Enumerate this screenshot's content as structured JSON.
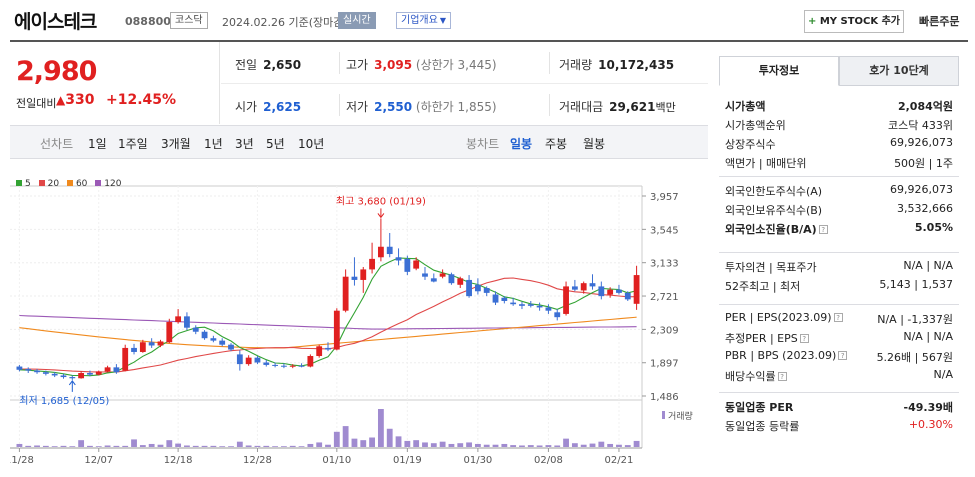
{
  "header": {
    "company": "에이스테크",
    "code": "088800",
    "market": "코스닥",
    "date_label": "2024.02.26 기준(장마감)",
    "live_label": "실시간",
    "info_label": "기업개요",
    "mystock_label": "MY STOCK 추가",
    "quick_order_label": "빠른주문"
  },
  "price": {
    "current": "2,980",
    "prev_diff_label": "전일대비",
    "change": "330",
    "change_rate": "+12.45%"
  },
  "stats": {
    "prev_close": {
      "label": "전일",
      "value": "2,650"
    },
    "high": {
      "label": "고가",
      "value": "3,095",
      "sub": "(상한가 3,445)"
    },
    "volume": {
      "label": "거래량",
      "value": "10,172,435"
    },
    "open": {
      "label": "시가",
      "value": "2,625"
    },
    "low": {
      "label": "저가",
      "value": "2,550",
      "sub": "(하한가 1,855)"
    },
    "amount": {
      "label": "거래대금",
      "value": "29,621",
      "unit": "백만"
    }
  },
  "period_bar": {
    "line_chart_label": "선차트",
    "line_periods": [
      "1일",
      "1주일",
      "3개월",
      "1년",
      "3년",
      "5년",
      "10년"
    ],
    "candle_chart_label": "봉차트",
    "candle_periods": [
      "일봉",
      "주봉",
      "월봉"
    ],
    "selected": "일봉"
  },
  "chart_data": {
    "type": "candlestick",
    "legend": [
      "5",
      "20",
      "60",
      "120"
    ],
    "colors": {
      "ma5": "#33a333",
      "ma20": "#e04848",
      "ma60": "#f08a1e",
      "ma120": "#9b59b6",
      "up": "#e02020",
      "down": "#3b6fd4",
      "volume": "#a08bd0"
    },
    "y_ticks": [
      "3,957",
      "3,545",
      "3,133",
      "2,721",
      "2,309",
      "1,897",
      "1,486"
    ],
    "y_range": [
      1486,
      3957
    ],
    "x_ticks": [
      "11/28",
      "12/07",
      "12/18",
      "12/28",
      "01/10",
      "01/19",
      "01/30",
      "02/08",
      "02/21"
    ],
    "max_annotation": "최고 3,680 (01/19)",
    "min_annotation": "최저 1,685 (12/05)",
    "volume_label": "거래량",
    "candles": [
      {
        "o": 1850,
        "h": 1870,
        "l": 1790,
        "c": 1810
      },
      {
        "o": 1820,
        "h": 1840,
        "l": 1770,
        "c": 1800
      },
      {
        "o": 1800,
        "h": 1820,
        "l": 1760,
        "c": 1780
      },
      {
        "o": 1780,
        "h": 1800,
        "l": 1740,
        "c": 1760
      },
      {
        "o": 1760,
        "h": 1780,
        "l": 1720,
        "c": 1740
      },
      {
        "o": 1740,
        "h": 1760,
        "l": 1700,
        "c": 1720
      },
      {
        "o": 1720,
        "h": 1740,
        "l": 1685,
        "c": 1705
      },
      {
        "o": 1705,
        "h": 1790,
        "l": 1700,
        "c": 1770
      },
      {
        "o": 1770,
        "h": 1800,
        "l": 1730,
        "c": 1750
      },
      {
        "o": 1750,
        "h": 1800,
        "l": 1740,
        "c": 1790
      },
      {
        "o": 1790,
        "h": 1860,
        "l": 1780,
        "c": 1840
      },
      {
        "o": 1840,
        "h": 1880,
        "l": 1760,
        "c": 1780
      },
      {
        "o": 1800,
        "h": 2120,
        "l": 1790,
        "c": 2080
      },
      {
        "o": 2080,
        "h": 2130,
        "l": 2000,
        "c": 2030
      },
      {
        "o": 2030,
        "h": 2180,
        "l": 2020,
        "c": 2150
      },
      {
        "o": 2150,
        "h": 2200,
        "l": 2080,
        "c": 2110
      },
      {
        "o": 2110,
        "h": 2180,
        "l": 2090,
        "c": 2160
      },
      {
        "o": 2150,
        "h": 2440,
        "l": 2140,
        "c": 2400
      },
      {
        "o": 2400,
        "h": 2560,
        "l": 2380,
        "c": 2470
      },
      {
        "o": 2470,
        "h": 2520,
        "l": 2300,
        "c": 2330
      },
      {
        "o": 2330,
        "h": 2360,
        "l": 2250,
        "c": 2280
      },
      {
        "o": 2280,
        "h": 2300,
        "l": 2180,
        "c": 2200
      },
      {
        "o": 2200,
        "h": 2230,
        "l": 2150,
        "c": 2170
      },
      {
        "o": 2170,
        "h": 2200,
        "l": 2100,
        "c": 2120
      },
      {
        "o": 2120,
        "h": 2140,
        "l": 2040,
        "c": 2060
      },
      {
        "o": 2000,
        "h": 2050,
        "l": 1800,
        "c": 1880
      },
      {
        "o": 1880,
        "h": 1990,
        "l": 1860,
        "c": 1960
      },
      {
        "o": 1960,
        "h": 1980,
        "l": 1880,
        "c": 1900
      },
      {
        "o": 1900,
        "h": 1930,
        "l": 1850,
        "c": 1870
      },
      {
        "o": 1870,
        "h": 1900,
        "l": 1840,
        "c": 1860
      },
      {
        "o": 1860,
        "h": 1890,
        "l": 1830,
        "c": 1850
      },
      {
        "o": 1850,
        "h": 1880,
        "l": 1830,
        "c": 1860
      },
      {
        "o": 1860,
        "h": 1890,
        "l": 1840,
        "c": 1850
      },
      {
        "o": 1850,
        "h": 2000,
        "l": 1840,
        "c": 1980
      },
      {
        "o": 1980,
        "h": 2120,
        "l": 1960,
        "c": 2100
      },
      {
        "o": 2080,
        "h": 2150,
        "l": 2040,
        "c": 2060
      },
      {
        "o": 2060,
        "h": 2570,
        "l": 2050,
        "c": 2540
      },
      {
        "o": 2540,
        "h": 3050,
        "l": 2520,
        "c": 2960
      },
      {
        "o": 2960,
        "h": 3200,
        "l": 2850,
        "c": 2920
      },
      {
        "o": 2920,
        "h": 3080,
        "l": 2760,
        "c": 3050
      },
      {
        "o": 3050,
        "h": 3380,
        "l": 3000,
        "c": 3180
      },
      {
        "o": 3200,
        "h": 3680,
        "l": 3150,
        "c": 3330
      },
      {
        "o": 3330,
        "h": 3500,
        "l": 3200,
        "c": 3240
      },
      {
        "o": 3200,
        "h": 3310,
        "l": 3100,
        "c": 3160
      },
      {
        "o": 3180,
        "h": 3220,
        "l": 2980,
        "c": 3020
      },
      {
        "o": 3060,
        "h": 3200,
        "l": 3040,
        "c": 3160
      },
      {
        "o": 3000,
        "h": 3080,
        "l": 2920,
        "c": 2960
      },
      {
        "o": 2940,
        "h": 3000,
        "l": 2890,
        "c": 2900
      },
      {
        "o": 2960,
        "h": 3050,
        "l": 2940,
        "c": 3000
      },
      {
        "o": 2990,
        "h": 3010,
        "l": 2860,
        "c": 2880
      },
      {
        "o": 2860,
        "h": 2960,
        "l": 2820,
        "c": 2940
      },
      {
        "o": 2920,
        "h": 2980,
        "l": 2700,
        "c": 2720
      },
      {
        "o": 2860,
        "h": 2940,
        "l": 2740,
        "c": 2780
      },
      {
        "o": 2820,
        "h": 2840,
        "l": 2720,
        "c": 2760
      },
      {
        "o": 2740,
        "h": 2780,
        "l": 2610,
        "c": 2640
      },
      {
        "o": 2700,
        "h": 2720,
        "l": 2630,
        "c": 2660
      },
      {
        "o": 2640,
        "h": 2700,
        "l": 2600,
        "c": 2620
      },
      {
        "o": 2620,
        "h": 2650,
        "l": 2560,
        "c": 2600
      },
      {
        "o": 2620,
        "h": 2660,
        "l": 2580,
        "c": 2600
      },
      {
        "o": 2600,
        "h": 2640,
        "l": 2540,
        "c": 2580
      },
      {
        "o": 2580,
        "h": 2620,
        "l": 2500,
        "c": 2540
      },
      {
        "o": 2520,
        "h": 2560,
        "l": 2420,
        "c": 2460
      },
      {
        "o": 2500,
        "h": 2900,
        "l": 2480,
        "c": 2840
      },
      {
        "o": 2840,
        "h": 2920,
        "l": 2780,
        "c": 2800
      },
      {
        "o": 2790,
        "h": 2900,
        "l": 2750,
        "c": 2880
      },
      {
        "o": 2880,
        "h": 2990,
        "l": 2800,
        "c": 2840
      },
      {
        "o": 2840,
        "h": 2900,
        "l": 2680,
        "c": 2720
      },
      {
        "o": 2740,
        "h": 2830,
        "l": 2700,
        "c": 2800
      },
      {
        "o": 2800,
        "h": 2860,
        "l": 2740,
        "c": 2760
      },
      {
        "o": 2760,
        "h": 2780,
        "l": 2660,
        "c": 2680
      },
      {
        "o": 2625,
        "h": 3095,
        "l": 2550,
        "c": 2980
      }
    ],
    "volumes": [
      8,
      3,
      4,
      3,
      2,
      3,
      2,
      18,
      3,
      2,
      4,
      3,
      3,
      20,
      5,
      8,
      6,
      18,
      9,
      4,
      3,
      3,
      3,
      2,
      2,
      14,
      4,
      3,
      3,
      2,
      2,
      3,
      2,
      8,
      12,
      6,
      40,
      55,
      22,
      18,
      25,
      100,
      48,
      28,
      16,
      18,
      12,
      10,
      14,
      8,
      10,
      12,
      8,
      6,
      6,
      8,
      5,
      4,
      5,
      4,
      5,
      4,
      22,
      10,
      6,
      9,
      14,
      8,
      6,
      5,
      16
    ]
  },
  "side": {
    "tabs": [
      "투자정보",
      "호가 10단계"
    ],
    "rows1": [
      {
        "k": "시가총액",
        "v": "2,084억원",
        "bold": true
      },
      {
        "k": "시가총액순위",
        "v": "코스닥 433위"
      },
      {
        "k": "상장주식수",
        "v": "69,926,073"
      },
      {
        "k": "액면가 | 매매단위",
        "v": "500원 | 1주"
      }
    ],
    "rows2": [
      {
        "k": "외국인한도주식수(A)",
        "v": "69,926,073"
      },
      {
        "k": "외국인보유주식수(B)",
        "v": "3,532,666"
      },
      {
        "k": "외국인소진율(B/A)",
        "v": "5.05%",
        "bold": true
      }
    ],
    "rows3": [
      {
        "k": "투자의견 | 목표주가",
        "v": "N/A | N/A"
      },
      {
        "k": "52주최고 | 최저",
        "v": "5,143 | 1,537"
      }
    ],
    "rows4": [
      {
        "k": "PER | EPS(2023.09)",
        "v": "N/A | -1,337원"
      },
      {
        "k": "추정PER | EPS",
        "v": "N/A | N/A"
      },
      {
        "k": "PBR | BPS (2023.09)",
        "v": "5.26배 | 567원"
      },
      {
        "k": "배당수익률",
        "v": "N/A"
      }
    ],
    "rows5": [
      {
        "k": "동일업종 PER",
        "v": "-49.39배",
        "bold": true
      },
      {
        "k": "동일업종 등락률",
        "v": "+0.30%",
        "red": true
      }
    ]
  }
}
